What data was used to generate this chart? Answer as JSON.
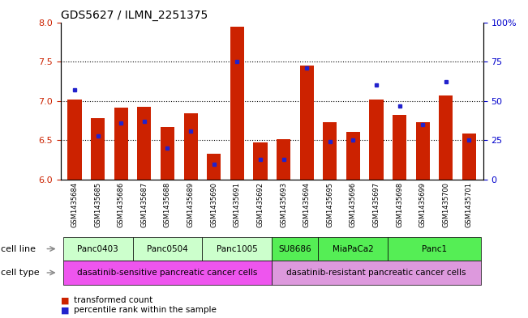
{
  "title": "GDS5627 / ILMN_2251375",
  "samples": [
    "GSM1435684",
    "GSM1435685",
    "GSM1435686",
    "GSM1435687",
    "GSM1435688",
    "GSM1435689",
    "GSM1435690",
    "GSM1435691",
    "GSM1435692",
    "GSM1435693",
    "GSM1435694",
    "GSM1435695",
    "GSM1435696",
    "GSM1435697",
    "GSM1435698",
    "GSM1435699",
    "GSM1435700",
    "GSM1435701"
  ],
  "transformed_count": [
    7.02,
    6.78,
    6.92,
    6.93,
    6.67,
    6.84,
    6.33,
    7.94,
    6.47,
    6.51,
    7.45,
    6.73,
    6.61,
    7.02,
    6.82,
    6.73,
    7.07,
    6.59
  ],
  "percentile_rank": [
    57,
    28,
    36,
    37,
    20,
    31,
    10,
    75,
    13,
    13,
    71,
    24,
    25,
    60,
    47,
    35,
    62,
    25
  ],
  "ylim_left": [
    6.0,
    8.0
  ],
  "ylim_right": [
    0,
    100
  ],
  "yticks_left": [
    6.0,
    6.5,
    7.0,
    7.5,
    8.0
  ],
  "yticks_right": [
    0,
    25,
    50,
    75,
    100
  ],
  "ytick_labels_right": [
    "0",
    "25",
    "50",
    "75",
    "100%"
  ],
  "bar_color": "#cc2200",
  "dot_color": "#2222cc",
  "cell_lines": [
    {
      "name": "Panc0403",
      "start": 0,
      "end": 2,
      "color": "#ccffcc"
    },
    {
      "name": "Panc0504",
      "start": 3,
      "end": 5,
      "color": "#ccffcc"
    },
    {
      "name": "Panc1005",
      "start": 6,
      "end": 8,
      "color": "#ccffcc"
    },
    {
      "name": "SU8686",
      "start": 9,
      "end": 10,
      "color": "#55ee55"
    },
    {
      "name": "MiaPaCa2",
      "start": 11,
      "end": 13,
      "color": "#55ee55"
    },
    {
      "name": "Panc1",
      "start": 14,
      "end": 17,
      "color": "#55ee55"
    }
  ],
  "cell_types": [
    {
      "name": "dasatinib-sensitive pancreatic cancer cells",
      "start": 0,
      "end": 8,
      "color": "#ee55ee"
    },
    {
      "name": "dasatinib-resistant pancreatic cancer cells",
      "start": 9,
      "end": 17,
      "color": "#dd99dd"
    }
  ],
  "legend_red_label": "transformed count",
  "legend_blue_label": "percentile rank within the sample",
  "left_axis_color": "#cc2200",
  "right_axis_color": "#0000cc",
  "cell_line_label": "cell line",
  "cell_type_label": "cell type"
}
